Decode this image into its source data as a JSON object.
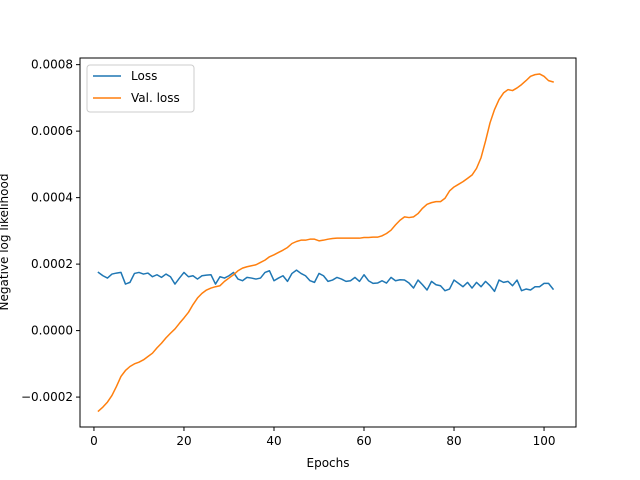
{
  "chart_data": {
    "type": "line",
    "title": "",
    "xlabel": "Epochs",
    "ylabel": "Negative log likelihood",
    "xlim": [
      -3.1,
      107.1
    ],
    "ylim": [
      -0.00029,
      0.00082
    ],
    "xticks": [
      0,
      20,
      40,
      60,
      80,
      100
    ],
    "xtick_labels": [
      "0",
      "20",
      "40",
      "60",
      "80",
      "100"
    ],
    "yticks": [
      -0.0002,
      0.0,
      0.0002,
      0.0004,
      0.0006,
      0.0008
    ],
    "ytick_labels": [
      "−0.0002",
      "0.0000",
      "0.0002",
      "0.0004",
      "0.0006",
      "0.0008"
    ],
    "grid": false,
    "legend_position": "top-left",
    "x": [
      1,
      2,
      3,
      4,
      5,
      6,
      7,
      8,
      9,
      10,
      11,
      12,
      13,
      14,
      15,
      16,
      17,
      18,
      19,
      20,
      21,
      22,
      23,
      24,
      25,
      26,
      27,
      28,
      29,
      30,
      31,
      32,
      33,
      34,
      35,
      36,
      37,
      38,
      39,
      40,
      41,
      42,
      43,
      44,
      45,
      46,
      47,
      48,
      49,
      50,
      51,
      52,
      53,
      54,
      55,
      56,
      57,
      58,
      59,
      60,
      61,
      62,
      63,
      64,
      65,
      66,
      67,
      68,
      69,
      70,
      71,
      72,
      73,
      74,
      75,
      76,
      77,
      78,
      79,
      80,
      81,
      82,
      83,
      84,
      85,
      86,
      87,
      88,
      89,
      90,
      91,
      92,
      93,
      94,
      95,
      96,
      97,
      98,
      99,
      100,
      101,
      102
    ],
    "series": [
      {
        "name": "Loss",
        "color": "#1f77b4",
        "values": [
          0.000175,
          0.000165,
          0.000158,
          0.00017,
          0.000173,
          0.000175,
          0.00014,
          0.000145,
          0.000172,
          0.000175,
          0.00017,
          0.000173,
          0.000162,
          0.000168,
          0.00016,
          0.00017,
          0.000162,
          0.00014,
          0.000158,
          0.000175,
          0.000162,
          0.000165,
          0.000155,
          0.000165,
          0.000167,
          0.000168,
          0.00014,
          0.000162,
          0.000158,
          0.000165,
          0.000175,
          0.000155,
          0.00015,
          0.00016,
          0.000158,
          0.000155,
          0.000158,
          0.000175,
          0.00018,
          0.00015,
          0.000158,
          0.000165,
          0.000148,
          0.000172,
          0.000182,
          0.000172,
          0.000165,
          0.00015,
          0.000145,
          0.000172,
          0.000165,
          0.000148,
          0.000152,
          0.00016,
          0.000155,
          0.000148,
          0.00015,
          0.00016,
          0.000148,
          0.000168,
          0.00015,
          0.000142,
          0.000143,
          0.00015,
          0.000143,
          0.00016,
          0.00015,
          0.000153,
          0.000152,
          0.000143,
          0.000128,
          0.000152,
          0.000138,
          0.000122,
          0.000148,
          0.000138,
          0.000135,
          0.00012,
          0.000125,
          0.000152,
          0.000142,
          0.000132,
          0.000145,
          0.000128,
          0.000145,
          0.000132,
          0.000148,
          0.000135,
          0.000118,
          0.000152,
          0.000145,
          0.000148,
          0.000135,
          0.000152,
          0.00012,
          0.000125,
          0.000122,
          0.000132,
          0.000132,
          0.000142,
          0.000142,
          0.000125
        ]
      },
      {
        "name": "Val. loss",
        "color": "#ff7f0e",
        "values": [
          -0.000242,
          -0.00023,
          -0.000215,
          -0.000195,
          -0.000168,
          -0.000138,
          -0.00012,
          -0.000108,
          -0.0001,
          -9.5e-05,
          -8.8e-05,
          -7.8e-05,
          -6.8e-05,
          -5.2e-05,
          -3.8e-05,
          -2.2e-05,
          -8e-06,
          5e-06,
          2.2e-05,
          3.8e-05,
          5.5e-05,
          7.8e-05,
          9.8e-05,
          0.000112,
          0.000122,
          0.000128,
          0.000132,
          0.000135,
          0.000148,
          0.000158,
          0.000168,
          0.00018,
          0.000188,
          0.000192,
          0.000195,
          0.000198,
          0.000205,
          0.000212,
          0.000222,
          0.000228,
          0.000235,
          0.000242,
          0.00025,
          0.000262,
          0.000268,
          0.000272,
          0.000272,
          0.000275,
          0.000275,
          0.00027,
          0.000272,
          0.000275,
          0.000277,
          0.000278,
          0.000278,
          0.000278,
          0.000278,
          0.000278,
          0.000278,
          0.00028,
          0.00028,
          0.000281,
          0.000281,
          0.000285,
          0.000292,
          0.000302,
          0.000318,
          0.000332,
          0.000342,
          0.00034,
          0.000342,
          0.000352,
          0.000368,
          0.00038,
          0.000385,
          0.000388,
          0.000388,
          0.000398,
          0.00042,
          0.000432,
          0.00044,
          0.000448,
          0.000458,
          0.000468,
          0.000488,
          0.00052,
          0.00057,
          0.000625,
          0.000665,
          0.000695,
          0.000715,
          0.000725,
          0.000722,
          0.00073,
          0.00074,
          0.000752,
          0.000765,
          0.00077,
          0.000772,
          0.000765,
          0.000752,
          0.000748
        ]
      }
    ]
  }
}
